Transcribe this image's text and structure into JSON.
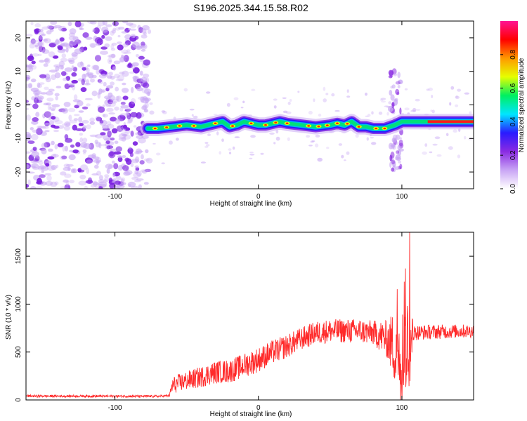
{
  "title": "S196.2025.344.15.58.R02",
  "chart_data": [
    {
      "type": "heatmap",
      "name": "spectrogram",
      "xlabel": "Height of straight line (km)",
      "ylabel": "Frequency (Hz)",
      "xlim": [
        -162,
        150
      ],
      "ylim": [
        -25,
        25
      ],
      "xticks": [
        -100,
        0,
        100
      ],
      "yticks": [
        -20,
        -10,
        0,
        10,
        20
      ],
      "ridge": [
        [
          -77,
          -7
        ],
        [
          -70,
          -7
        ],
        [
          -60,
          -6.5
        ],
        [
          -50,
          -6
        ],
        [
          -40,
          -6.5
        ],
        [
          -30,
          -5.5
        ],
        [
          -25,
          -5
        ],
        [
          -20,
          -6.5
        ],
        [
          -15,
          -6
        ],
        [
          -10,
          -5
        ],
        [
          -5,
          -5.5
        ],
        [
          0,
          -6
        ],
        [
          5,
          -6
        ],
        [
          10,
          -5.5
        ],
        [
          15,
          -5
        ],
        [
          20,
          -5.5
        ],
        [
          30,
          -6
        ],
        [
          40,
          -6.5
        ],
        [
          50,
          -6
        ],
        [
          55,
          -5.5
        ],
        [
          60,
          -6
        ],
        [
          65,
          -5
        ],
        [
          70,
          -6.5
        ],
        [
          75,
          -6.5
        ],
        [
          80,
          -7
        ],
        [
          88,
          -7
        ],
        [
          95,
          -6
        ],
        [
          100,
          -5
        ],
        [
          104,
          -5
        ],
        [
          120,
          -5
        ],
        [
          150,
          -5
        ]
      ]
    },
    {
      "type": "line",
      "name": "snr",
      "xlabel": "Height of straight line (km)",
      "ylabel": "SNR (10 * v/v)",
      "xlim": [
        -162,
        150
      ],
      "ylim": [
        0,
        1750
      ],
      "xticks": [
        -100,
        0,
        100
      ],
      "yticks": [
        0,
        500,
        1000,
        1500
      ],
      "color": "#ff2a2a",
      "envelope": [
        [
          -162,
          40
        ],
        [
          -120,
          40
        ],
        [
          -70,
          38
        ],
        [
          -62,
          45
        ],
        [
          -60,
          150
        ],
        [
          -55,
          180
        ],
        [
          -50,
          200
        ],
        [
          -40,
          240
        ],
        [
          -30,
          290
        ],
        [
          -20,
          300
        ],
        [
          -10,
          360
        ],
        [
          0,
          420
        ],
        [
          10,
          500
        ],
        [
          20,
          560
        ],
        [
          30,
          640
        ],
        [
          40,
          700
        ],
        [
          50,
          720
        ],
        [
          60,
          720
        ],
        [
          70,
          720
        ],
        [
          80,
          700
        ],
        [
          88,
          650
        ],
        [
          95,
          560
        ],
        [
          100,
          520
        ],
        [
          105,
          550
        ],
        [
          107,
          700
        ],
        [
          120,
          710
        ],
        [
          150,
          720
        ]
      ],
      "noise": [
        [
          -162,
          12
        ],
        [
          -62,
          12
        ],
        [
          -60,
          90
        ],
        [
          -30,
          120
        ],
        [
          0,
          130
        ],
        [
          30,
          120
        ],
        [
          80,
          130
        ],
        [
          90,
          200
        ],
        [
          95,
          400
        ],
        [
          105,
          500
        ],
        [
          108,
          80
        ],
        [
          150,
          70
        ]
      ],
      "peak": [
        105.5,
        1750
      ]
    }
  ],
  "colorbar": {
    "label": "Normalized spectral amplitude",
    "range": [
      0,
      1
    ],
    "ticks": [
      "0.0",
      "0.2",
      "0.4",
      "0.6",
      "0.8"
    ],
    "stops": [
      "#ffffff",
      "#c9a5f5",
      "#8a2be2",
      "#2a1aff",
      "#00e5ff",
      "#00f060",
      "#e6ff00",
      "#ff9900",
      "#ff0000",
      "#ff1493"
    ]
  }
}
